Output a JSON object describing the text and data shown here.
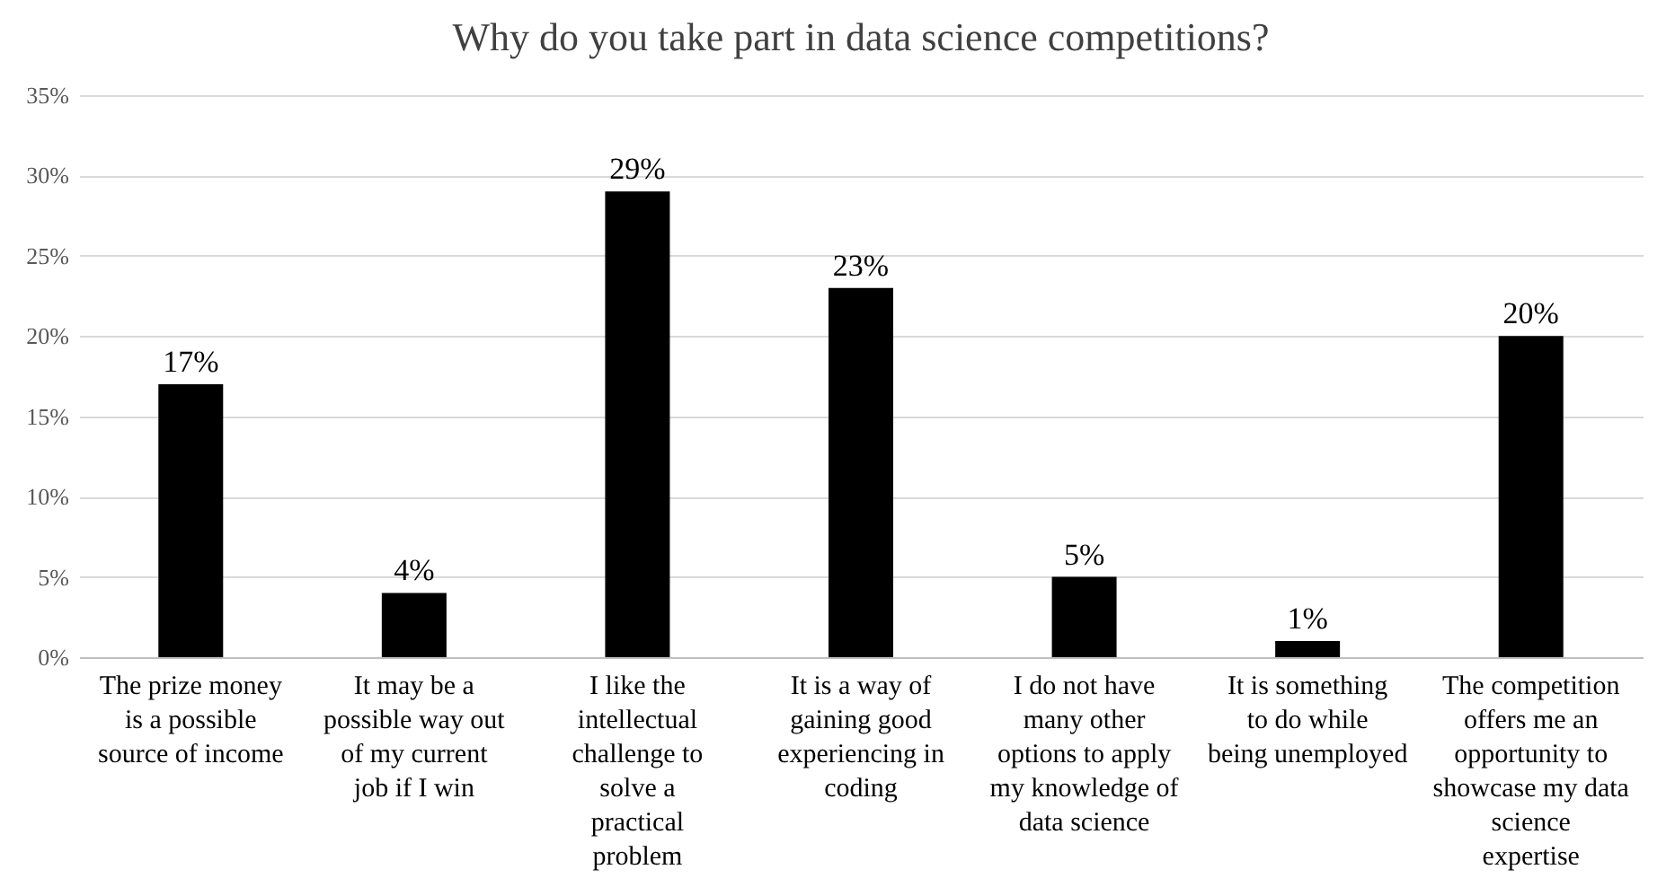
{
  "chart_data": {
    "type": "bar",
    "title": "Why do you take part in data science competitions?",
    "categories": [
      "The prize money is a possible source of income",
      "It may be a possible way out of my current job if I win",
      "I like the intellectual challenge to solve a practical problem",
      "It is a way of gaining good experiencing in coding",
      "I do not have many other options to apply my knowledge of data science",
      "It is something to do while being unemployed",
      "The competition offers me an opportunity to showcase my data science expertise"
    ],
    "values": [
      17,
      4,
      29,
      23,
      5,
      1,
      20
    ],
    "value_labels": [
      "17%",
      "4%",
      "29%",
      "23%",
      "5%",
      "1%",
      "20%"
    ],
    "color": "#000000",
    "ylim": [
      0,
      35
    ],
    "yticks": [
      {
        "value": 0,
        "label": "0%"
      },
      {
        "value": 5,
        "label": "5%"
      },
      {
        "value": 10,
        "label": "10%"
      },
      {
        "value": 15,
        "label": "15%"
      },
      {
        "value": 20,
        "label": "20%"
      },
      {
        "value": 25,
        "label": "25%"
      },
      {
        "value": 30,
        "label": "30%"
      },
      {
        "value": 35,
        "label": "35%"
      }
    ],
    "grid": "y"
  }
}
